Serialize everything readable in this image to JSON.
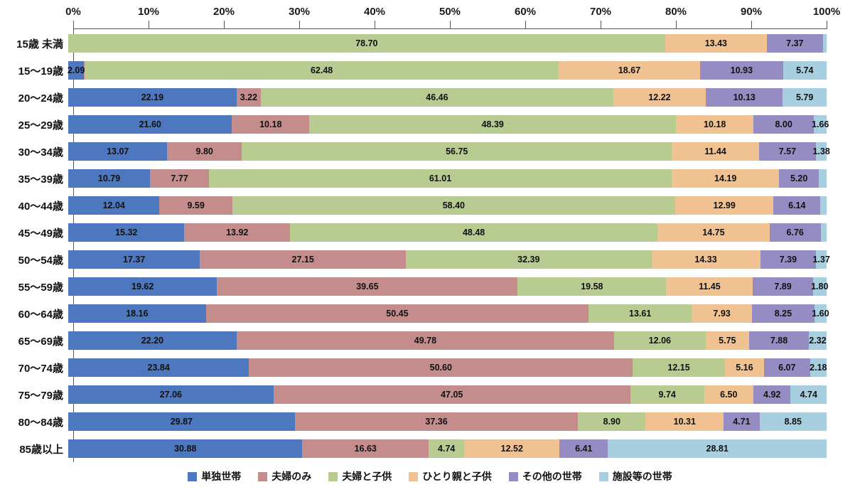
{
  "chart_data": {
    "type": "bar",
    "variant": "stacked-horizontal",
    "title": "",
    "x_axis": {
      "range": [
        0,
        100
      ],
      "tick_step": 10,
      "tick_labels": [
        "0%",
        "10%",
        "20%",
        "30%",
        "40%",
        "50%",
        "60%",
        "70%",
        "80%",
        "90%",
        "100%"
      ]
    },
    "legend_position": "bottom",
    "series": [
      {
        "name": "単独世帯",
        "color": "#4d77be"
      },
      {
        "name": "夫婦のみ",
        "color": "#c58c8c"
      },
      {
        "name": "夫婦と子供",
        "color": "#b8cc92"
      },
      {
        "name": "ひとり親と子供",
        "color": "#f1c291"
      },
      {
        "name": "その他の世帯",
        "color": "#968cc4"
      },
      {
        "name": "施設等の世帯",
        "color": "#a8cfe0"
      }
    ],
    "rows": [
      {
        "category": "15歳 未満",
        "values": [
          0,
          0,
          78.7,
          13.43,
          7.37,
          0.5
        ],
        "labels": [
          "",
          "",
          "78.70",
          "13.43",
          "7.37",
          ""
        ]
      },
      {
        "category": "15〜19歳",
        "values": [
          2.09,
          0.09,
          62.48,
          18.67,
          10.93,
          5.74
        ],
        "labels": [
          "2.09",
          "",
          "62.48",
          "18.67",
          "10.93",
          "5.74"
        ]
      },
      {
        "category": "20〜24歳",
        "values": [
          22.19,
          3.22,
          46.46,
          12.22,
          10.13,
          5.79
        ],
        "labels": [
          "22.19",
          "3.22",
          "46.46",
          "12.22",
          "10.13",
          "5.79"
        ]
      },
      {
        "category": "25〜29歳",
        "values": [
          21.6,
          10.18,
          48.39,
          10.18,
          8.0,
          1.66
        ],
        "labels": [
          "21.60",
          "10.18",
          "48.39",
          "10.18",
          "8.00",
          "1.66"
        ]
      },
      {
        "category": "30〜34歳",
        "values": [
          13.07,
          9.8,
          56.75,
          11.44,
          7.57,
          1.38
        ],
        "labels": [
          "13.07",
          "9.80",
          "56.75",
          "11.44",
          "7.57",
          "1.38"
        ]
      },
      {
        "category": "35〜39歳",
        "values": [
          10.79,
          7.77,
          61.01,
          14.19,
          5.2,
          1.04
        ],
        "labels": [
          "10.79",
          "7.77",
          "61.01",
          "14.19",
          "5.20",
          ""
        ]
      },
      {
        "category": "40〜44歳",
        "values": [
          12.04,
          9.59,
          58.4,
          12.99,
          6.14,
          0.84
        ],
        "labels": [
          "12.04",
          "9.59",
          "58.40",
          "12.99",
          "6.14",
          ""
        ]
      },
      {
        "category": "45〜49歳",
        "values": [
          15.32,
          13.92,
          48.48,
          14.75,
          6.76,
          0.77
        ],
        "labels": [
          "15.32",
          "13.92",
          "48.48",
          "14.75",
          "6.76",
          ""
        ]
      },
      {
        "category": "50〜54歳",
        "values": [
          17.37,
          27.15,
          32.39,
          14.33,
          7.39,
          1.37
        ],
        "labels": [
          "17.37",
          "27.15",
          "32.39",
          "14.33",
          "7.39",
          "1.37"
        ]
      },
      {
        "category": "55〜59歳",
        "values": [
          19.62,
          39.65,
          19.58,
          11.45,
          7.89,
          1.8
        ],
        "labels": [
          "19.62",
          "39.65",
          "19.58",
          "11.45",
          "7.89",
          "1.80"
        ]
      },
      {
        "category": "60〜64歳",
        "values": [
          18.16,
          50.45,
          13.61,
          7.93,
          8.25,
          1.6
        ],
        "labels": [
          "18.16",
          "50.45",
          "13.61",
          "7.93",
          "8.25",
          "1.60"
        ]
      },
      {
        "category": "65〜69歳",
        "values": [
          22.2,
          49.78,
          12.06,
          5.75,
          7.88,
          2.32
        ],
        "labels": [
          "22.20",
          "49.78",
          "12.06",
          "5.75",
          "7.88",
          "2.32"
        ]
      },
      {
        "category": "70〜74歳",
        "values": [
          23.84,
          50.6,
          12.15,
          5.16,
          6.07,
          2.18
        ],
        "labels": [
          "23.84",
          "50.60",
          "12.15",
          "5.16",
          "6.07",
          "2.18"
        ]
      },
      {
        "category": "75〜79歳",
        "values": [
          27.06,
          47.05,
          9.74,
          6.5,
          4.92,
          4.74
        ],
        "labels": [
          "27.06",
          "47.05",
          "9.74",
          "6.50",
          "4.92",
          "4.74"
        ]
      },
      {
        "category": "80〜84歳",
        "values": [
          29.87,
          37.36,
          8.9,
          10.31,
          4.71,
          8.85
        ],
        "labels": [
          "29.87",
          "37.36",
          "8.90",
          "10.31",
          "4.71",
          "8.85"
        ]
      },
      {
        "category": "85歳以上",
        "values": [
          30.88,
          16.63,
          4.74,
          12.52,
          6.41,
          28.81
        ],
        "labels": [
          "30.88",
          "16.63",
          "4.74",
          "12.52",
          "6.41",
          "28.81"
        ]
      }
    ]
  }
}
